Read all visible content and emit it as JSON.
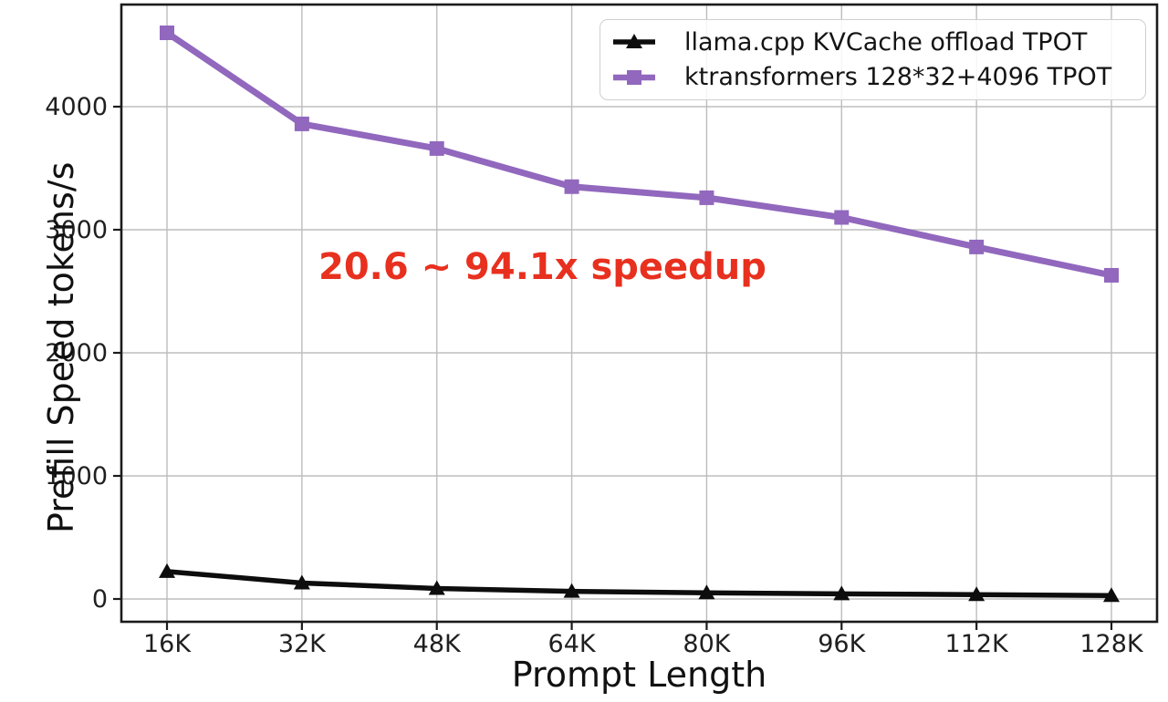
{
  "chart_data": {
    "type": "line",
    "title": "",
    "xlabel": "Prompt Length",
    "ylabel": "Prefill Speed tokens/s",
    "categories": [
      "16K",
      "32K",
      "48K",
      "64K",
      "80K",
      "96K",
      "112K",
      "128K"
    ],
    "ytick_labels": [
      "0",
      "1000",
      "2000",
      "3000",
      "4000"
    ],
    "ytick_values": [
      0,
      1000,
      2000,
      3000,
      4000
    ],
    "ylim": [
      -185,
      4830
    ],
    "grid": true,
    "legend_position": "upper right",
    "annotation": {
      "text": "20.6 ~ 94.1x speedup",
      "color": "#e8301f"
    },
    "series": [
      {
        "name": "llama.cpp KVCache offload TPOT",
        "color": "#0d0d0d",
        "marker": "triangle",
        "values": [
          223,
          130,
          85,
          62,
          50,
          42,
          35,
          28
        ]
      },
      {
        "name": "ktransformers 128*32+4096 TPOT",
        "color": "#9168bd",
        "marker": "square",
        "values": [
          4600,
          3860,
          3660,
          3350,
          3260,
          3100,
          2860,
          2630
        ]
      }
    ]
  }
}
